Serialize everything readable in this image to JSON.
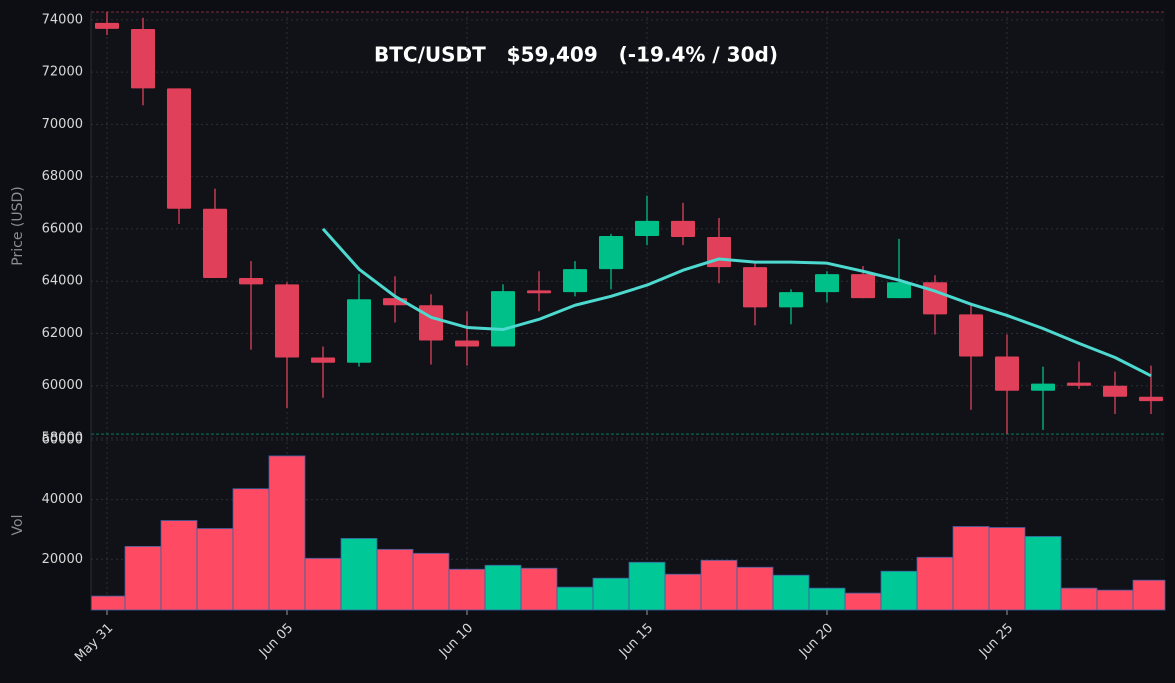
{
  "chart_data": [
    {
      "type": "candlestick",
      "title": "BTC/USDT   $59,409   (-19.4% / 30d)",
      "ylabel": "Price (USD)",
      "categories": [
        "May 31",
        null,
        null,
        null,
        null,
        "Jun 05",
        null,
        null,
        null,
        null,
        "Jun 10",
        null,
        null,
        null,
        null,
        "Jun 15",
        null,
        null,
        null,
        null,
        "Jun 20",
        null,
        null,
        null,
        null,
        "Jun 25",
        null,
        null,
        null,
        null
      ],
      "open": [
        73885,
        73650,
        71380,
        66770,
        64120,
        63880,
        61080,
        60880,
        63350,
        63080,
        61730,
        61500,
        63650,
        63580,
        64460,
        65730,
        66310,
        65690,
        64540,
        63000,
        63580,
        64270,
        63350,
        63960,
        62730,
        61120,
        59810,
        60120,
        60000,
        59580
      ],
      "high": [
        74300,
        74080,
        71380,
        67540,
        64770,
        63960,
        61500,
        64270,
        64190,
        63500,
        62850,
        63880,
        64380,
        64770,
        65810,
        67270,
        67000,
        66420,
        64770,
        63690,
        64380,
        64580,
        65620,
        64230,
        63150,
        61960,
        60730,
        60920,
        60540,
        60770
      ],
      "low": [
        73420,
        70730,
        66190,
        64120,
        61380,
        59150,
        59540,
        60730,
        62420,
        60810,
        60770,
        61500,
        62850,
        63420,
        63690,
        65380,
        65380,
        63920,
        62310,
        62350,
        63190,
        63350,
        63350,
        61960,
        59080,
        58150,
        58310,
        59880,
        58920,
        58920
      ],
      "close": [
        73654,
        71380,
        66770,
        64120,
        63880,
        61080,
        60880,
        63310,
        63080,
        61730,
        61500,
        63620,
        63540,
        64460,
        65730,
        66310,
        65690,
        64540,
        63000,
        63580,
        64270,
        63350,
        63960,
        62730,
        61120,
        59810,
        60080,
        60000,
        59580,
        59409
      ],
      "up_color": "#00c08a",
      "down_color": "#e0405a",
      "line": {
        "color": "#4dd9cf",
        "values": [
          null,
          null,
          null,
          null,
          null,
          null,
          66000,
          64460,
          63420,
          62620,
          62230,
          62150,
          62540,
          63080,
          63420,
          63850,
          64420,
          64850,
          64730,
          64730,
          64690,
          64380,
          64040,
          63620,
          63120,
          62690,
          62190,
          61620,
          61080,
          60380
        ]
      },
      "ylim": [
        58000,
        74300
      ],
      "yticks": [
        58000,
        60000,
        62000,
        64000,
        66000,
        68000,
        70000,
        72000,
        74000
      ],
      "grid": true
    },
    {
      "type": "bar",
      "ylabel": "Vol",
      "values": [
        7670,
        24330,
        33000,
        30330,
        43670,
        54670,
        20330,
        27000,
        23330,
        22000,
        16670,
        18000,
        17000,
        10670,
        13670,
        19000,
        15000,
        19670,
        17330,
        14670,
        10330,
        8670,
        16000,
        20670,
        31000,
        30670,
        27670,
        10330,
        9670,
        13000
      ],
      "up_color": "#00c896",
      "down_color": "#ff4a64",
      "ylim": [
        3000,
        61000
      ],
      "yticks": [
        20000,
        40000,
        60000
      ],
      "grid": true
    }
  ]
}
